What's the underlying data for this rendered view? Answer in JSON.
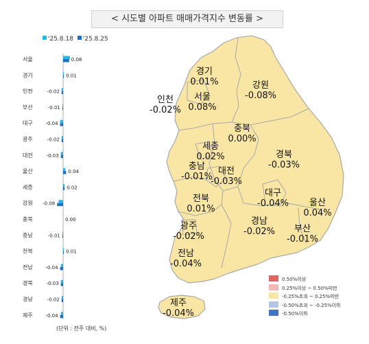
{
  "title": "< 시도별 아파트 매매가격지수 변동률 >",
  "unit_note": "(단위 : 전주 대비, %)",
  "colors": {
    "series_prev": "#29b6e8",
    "series_curr": "#1f6fc4",
    "map_fill": "#fae6a4",
    "map_border": "#a8a8a8"
  },
  "chart_data": [
    {
      "type": "bar",
      "orientation": "horizontal",
      "series_names": [
        "'25.8.18",
        "'25.8.25"
      ],
      "categories": [
        "서울",
        "경기",
        "인천",
        "부산",
        "대구",
        "광주",
        "대전",
        "울산",
        "세종",
        "강원",
        "충북",
        "충남",
        "전북",
        "전남",
        "경북",
        "경남",
        "제주"
      ],
      "series": [
        {
          "name": "'25.8.18",
          "values": [
            0.09,
            0.01,
            -0.02,
            -0.01,
            -0.04,
            -0.02,
            -0.03,
            0.03,
            0.02,
            -0.06,
            0.0,
            -0.01,
            0.01,
            -0.03,
            -0.03,
            -0.02,
            -0.03
          ]
        },
        {
          "name": "'25.8.25",
          "values": [
            0.08,
            0.01,
            -0.02,
            -0.01,
            -0.04,
            -0.02,
            -0.03,
            0.04,
            0.02,
            -0.08,
            0.0,
            -0.01,
            0.01,
            -0.04,
            -0.03,
            -0.02,
            -0.04
          ]
        }
      ],
      "data_labels": [
        "0.08",
        "0.01",
        "-0.02",
        "-0.01",
        "-0.04",
        "-0.02",
        "-0.03",
        "0.04",
        "0.02",
        "-0.08",
        "0.00",
        "-0.01",
        "0.01",
        "-0.04",
        "-0.03",
        "-0.02",
        "-0.04"
      ]
    },
    {
      "type": "choropleth_map",
      "regions": [
        {
          "name": "경기",
          "value": "0.01%"
        },
        {
          "name": "강원",
          "value": "-0.08%"
        },
        {
          "name": "인천",
          "value": "-0.02%"
        },
        {
          "name": "서울",
          "value": "0.08%"
        },
        {
          "name": "충북",
          "value": "0.00%"
        },
        {
          "name": "세종",
          "value": "0.02%"
        },
        {
          "name": "경북",
          "value": "-0.03%"
        },
        {
          "name": "충남",
          "value": "-0.01%"
        },
        {
          "name": "대전",
          "value": "-0.03%"
        },
        {
          "name": "대구",
          "value": "-0.04%"
        },
        {
          "name": "전북",
          "value": "0.01%"
        },
        {
          "name": "울산",
          "value": "0.04%"
        },
        {
          "name": "경남",
          "value": "-0.02%"
        },
        {
          "name": "광주",
          "value": "-0.02%"
        },
        {
          "name": "부산",
          "value": "-0.01%"
        },
        {
          "name": "전남",
          "value": "-0.04%"
        },
        {
          "name": "제주",
          "value": "-0.04%"
        }
      ],
      "legend": [
        {
          "label": "0.50%이상",
          "color": "#e06666"
        },
        {
          "label": "0.25%이상 ~ 0.50%미만",
          "color": "#f2b8b5"
        },
        {
          "label": "-0.25%초과 ~ 0.25%미만",
          "color": "#fae6a4"
        },
        {
          "label": "-0.50%초과 ~ -0.25%이하",
          "color": "#b4c6e7"
        },
        {
          "label": "-0.50%이하",
          "color": "#4472c4"
        }
      ]
    }
  ]
}
